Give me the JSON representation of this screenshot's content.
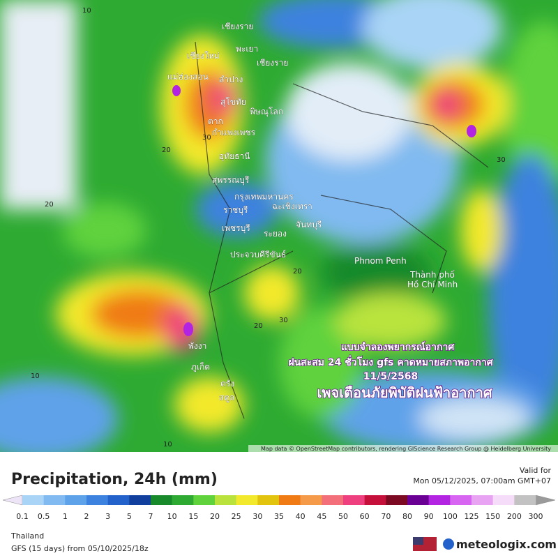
{
  "map": {
    "places": [
      "เชียงราย",
      "พะเยา",
      "เชียงใหม่",
      "เชียงราย",
      "แม่ฮ่องสอน",
      "ลำปาง",
      "สุโขทัย",
      "พิษณุโลก",
      "ตาก",
      "กำแพงเพชร",
      "อุทัยธานี",
      "สุพรรณบุรี",
      "กรุงเทพมหานคร",
      "ราชบุรี",
      "ฉะเชิงเทรา",
      "เพชรบุรี",
      "ระยอง",
      "จันทบุรี",
      "ประจวบคีรีขันธ์",
      "Phnom Penh",
      "Thành phố",
      "Hồ Chí Minh",
      "พังงา",
      "ภูเก็ต",
      "ตรัง",
      "สตูล"
    ],
    "contours": [
      "10",
      "20",
      "30",
      "20",
      "30",
      "20",
      "10",
      "30",
      "20",
      "10"
    ],
    "overlay": [
      "แบบจำลองพยากรณ์อากาศ",
      "ฝนสะสม 24 ชั่วโมง gfs คาดหมายสภาพอากาศ",
      "11/5/2568",
      "เพจเตือนภัยพิบัติฝนฟ้าอากาศ"
    ],
    "attribution": "Map data © OpenStreetMap contributors, rendering GIScience Research Group @ Heidelberg University"
  },
  "footer": {
    "title": "Precipitation, 24h (mm)",
    "valid_label": "Valid for",
    "valid_time": "Mon 05/12/2025, 07:00am GMT+07",
    "region": "Thailand",
    "model": "GFS (15 days) from 05/10/2025/18z",
    "brand": "meteologix.com"
  },
  "colorbar": {
    "ticks": [
      "0.1",
      "0.5",
      "1",
      "2",
      "3",
      "5",
      "7",
      "10",
      "15",
      "20",
      "25",
      "30",
      "35",
      "40",
      "45",
      "50",
      "60",
      "70",
      "80",
      "90",
      "100",
      "125",
      "150",
      "200",
      "300"
    ],
    "colors": [
      "#a9d4f6",
      "#80baf0",
      "#5ea2e9",
      "#3c82de",
      "#2262ca",
      "#103f9e",
      "#188a2c",
      "#2eaa32",
      "#5fd23c",
      "#b9e33c",
      "#f3e92c",
      "#e2c40e",
      "#f07a14",
      "#f49a48",
      "#f3707a",
      "#ee3f7e",
      "#c4103a",
      "#7c0a22",
      "#6a0094",
      "#b224e2",
      "#d865f2",
      "#e8a4f2",
      "#f5dcf8",
      "#c2c2c2"
    ],
    "low_color": "#ede4f7",
    "high_color": "#9a9a9a"
  }
}
